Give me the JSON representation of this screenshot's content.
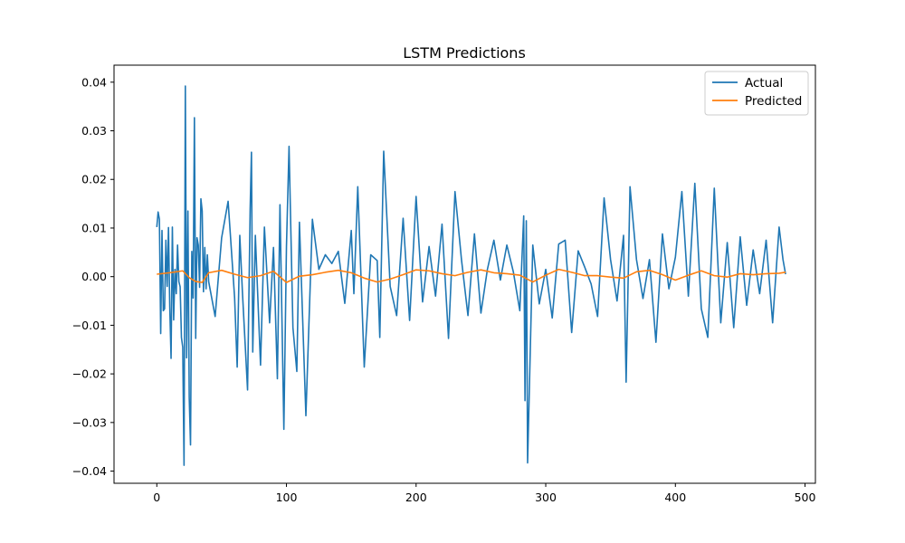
{
  "chart_data": {
    "type": "line",
    "title": "LSTM Predictions",
    "xlabel": "",
    "ylabel": "",
    "xlim": [
      -33,
      508
    ],
    "ylim": [
      -0.0425,
      0.0435
    ],
    "xticks": [
      0,
      100,
      200,
      300,
      400,
      500
    ],
    "xtick_labels": [
      "0",
      "100",
      "200",
      "300",
      "400",
      "500"
    ],
    "yticks": [
      -0.04,
      -0.03,
      -0.02,
      -0.01,
      0.0,
      0.01,
      0.02,
      0.03,
      0.04
    ],
    "ytick_labels": [
      "−0.04",
      "−0.03",
      "−0.02",
      "−0.01",
      "0.00",
      "0.01",
      "0.02",
      "0.03",
      "0.04"
    ],
    "grid": false,
    "legend_position": "top-right",
    "n_points": 485,
    "series": [
      {
        "name": "Actual",
        "color": "#1f77b4",
        "x": [
          0,
          1,
          2,
          3,
          4,
          5,
          6,
          7,
          8,
          9,
          10,
          11,
          12,
          13,
          14,
          15,
          16,
          17,
          18,
          19,
          20,
          21,
          22,
          23,
          24,
          25,
          26,
          27,
          28,
          29,
          30,
          31,
          32,
          33,
          34,
          35,
          36,
          37,
          38,
          39,
          40,
          45,
          50,
          55,
          60,
          62,
          64,
          66,
          70,
          72,
          73,
          74,
          76,
          80,
          83,
          87,
          90,
          93,
          95,
          98,
          100,
          102,
          105,
          108,
          110,
          115,
          120,
          125,
          130,
          135,
          140,
          145,
          150,
          152,
          155,
          160,
          165,
          170,
          172,
          175,
          180,
          185,
          190,
          195,
          200,
          205,
          210,
          215,
          220,
          225,
          230,
          235,
          240,
          245,
          250,
          255,
          260,
          265,
          270,
          275,
          280,
          283,
          284,
          285,
          286,
          290,
          295,
          300,
          305,
          310,
          315,
          320,
          325,
          330,
          335,
          340,
          345,
          350,
          355,
          360,
          362,
          365,
          370,
          375,
          380,
          385,
          390,
          395,
          400,
          405,
          410,
          415,
          420,
          425,
          430,
          435,
          440,
          445,
          450,
          455,
          460,
          465,
          470,
          475,
          480,
          483,
          485
        ],
        "y": [
          0.0102,
          0.0133,
          0.0118,
          -0.0117,
          0.0095,
          -0.007,
          -0.0066,
          0.0075,
          -0.002,
          0.0101,
          -0.0063,
          -0.0168,
          0.0102,
          -0.0089,
          0.0015,
          -0.0035,
          0.0065,
          -0.001,
          -0.0021,
          -0.0125,
          -0.0145,
          -0.0388,
          0.0392,
          -0.0167,
          0.0135,
          -0.0248,
          -0.0346,
          0.0052,
          -0.0044,
          0.0327,
          -0.0127,
          0.008,
          0.0065,
          -0.0022,
          0.016,
          0.0135,
          -0.0031,
          0.006,
          -0.0025,
          0.0045,
          -0.001,
          -0.0082,
          0.008,
          0.0155,
          -0.0043,
          -0.0186,
          0.0085,
          -0.003,
          -0.0233,
          0.014,
          0.0256,
          -0.0155,
          0.0085,
          -0.0182,
          0.0102,
          -0.0095,
          0.006,
          -0.021,
          0.0148,
          -0.0314,
          0.0062,
          0.0268,
          -0.0105,
          -0.0195,
          0.0112,
          -0.0286,
          0.0118,
          0.0015,
          0.0045,
          0.0027,
          0.0052,
          -0.0055,
          0.0095,
          -0.0035,
          0.0185,
          -0.0186,
          0.0045,
          0.0033,
          -0.0125,
          0.0258,
          -0.002,
          -0.008,
          0.012,
          -0.009,
          0.0165,
          -0.0052,
          0.0062,
          -0.004,
          0.0108,
          -0.0127,
          0.0175,
          0.0035,
          -0.008,
          0.0088,
          -0.0075,
          0.0015,
          0.0075,
          -0.0007,
          0.0065,
          0.001,
          -0.007,
          0.0125,
          -0.0255,
          0.0115,
          -0.0383,
          0.0065,
          -0.0056,
          0.0015,
          -0.0085,
          0.0067,
          0.0075,
          -0.0115,
          0.0053,
          0.002,
          -0.0015,
          -0.0082,
          0.0162,
          0.0035,
          -0.005,
          0.0085,
          -0.0217,
          0.0185,
          0.0035,
          -0.0045,
          0.0035,
          -0.0135,
          0.0088,
          -0.0025,
          0.004,
          0.0175,
          -0.004,
          0.0192,
          -0.0066,
          -0.0125,
          0.0182,
          -0.0095,
          0.007,
          -0.0105,
          0.0082,
          -0.0059,
          0.0055,
          -0.0035,
          0.0075,
          -0.0095,
          0.0102,
          0.0035,
          0.0005
        ]
      },
      {
        "name": "Predicted",
        "color": "#ff7f0e",
        "x": [
          0,
          10,
          20,
          25,
          30,
          35,
          40,
          50,
          60,
          70,
          80,
          90,
          100,
          110,
          120,
          130,
          140,
          150,
          160,
          170,
          180,
          190,
          200,
          210,
          220,
          230,
          240,
          250,
          260,
          270,
          280,
          290,
          300,
          310,
          320,
          330,
          340,
          350,
          360,
          370,
          380,
          390,
          400,
          410,
          420,
          430,
          440,
          450,
          460,
          470,
          480,
          485
        ],
        "y": [
          0.0005,
          0.0008,
          0.0012,
          -0.0002,
          -0.001,
          -0.0012,
          0.0008,
          0.0013,
          0.0005,
          -0.0002,
          0.0002,
          0.0011,
          -0.0012,
          0.0001,
          0.0004,
          0.0009,
          0.0013,
          0.0008,
          -0.0003,
          -0.0011,
          -0.0005,
          0.0004,
          0.0014,
          0.0012,
          0.0006,
          0.0002,
          0.0009,
          0.0014,
          0.0008,
          0.0006,
          0.0003,
          -0.0011,
          0.0003,
          0.0015,
          0.0009,
          0.0002,
          0.0002,
          -0.0001,
          -0.0003,
          0.001,
          0.0013,
          0.0004,
          -0.0007,
          0.0003,
          0.0012,
          0.0002,
          -0.0001,
          0.0006,
          0.0004,
          0.0006,
          0.0007,
          0.0009
        ]
      }
    ]
  }
}
